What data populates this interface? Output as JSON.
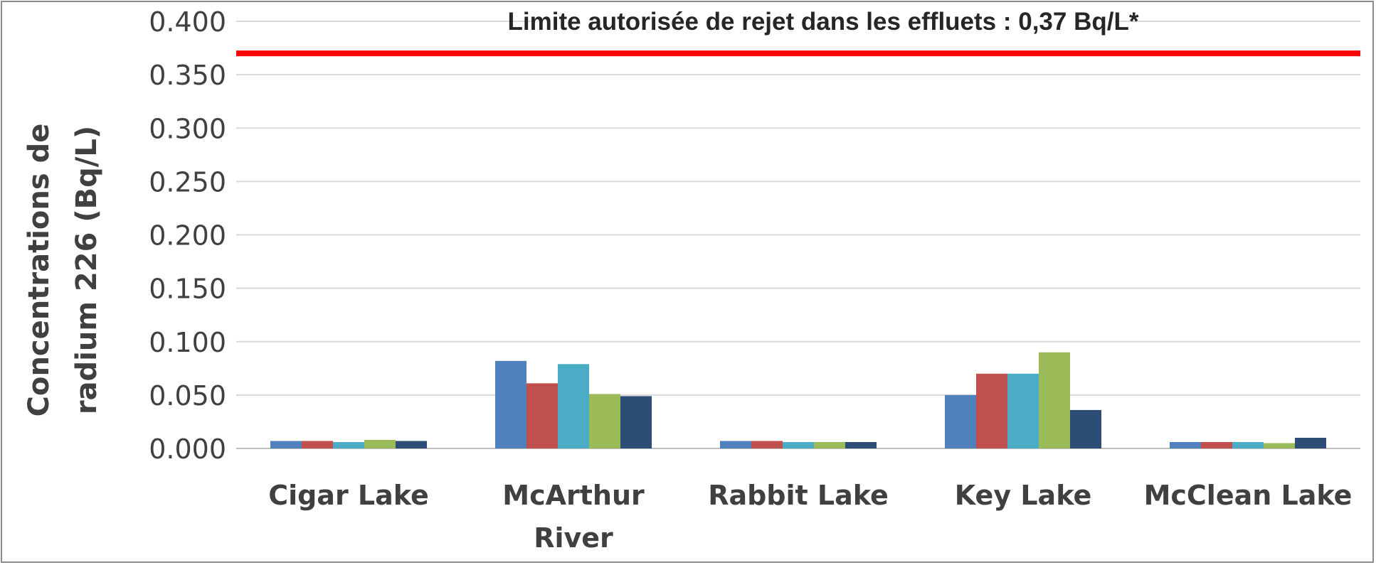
{
  "chart_data": {
    "type": "bar",
    "title": "",
    "ylabel_lines": [
      "Concentrations de",
      "radium 226 (Bq/L)"
    ],
    "xlabel": "",
    "categories": [
      "Cigar Lake",
      "McArthur River",
      "Rabbit Lake",
      "Key Lake",
      "McClean Lake"
    ],
    "series": [
      {
        "values": [
          0.007,
          0.082,
          0.007,
          0.05,
          0.006
        ],
        "color": "#4f81bd"
      },
      {
        "values": [
          0.007,
          0.061,
          0.007,
          0.07,
          0.006
        ],
        "color": "#c0504d"
      },
      {
        "values": [
          0.006,
          0.079,
          0.006,
          0.07,
          0.006
        ],
        "color": "#4bacc6"
      },
      {
        "values": [
          0.008,
          0.051,
          0.006,
          0.09,
          0.005
        ],
        "color": "#9bbb59"
      },
      {
        "values": [
          0.007,
          0.049,
          0.006,
          0.036,
          0.01
        ],
        "color": "#2c4d75"
      }
    ],
    "ylim": [
      0,
      0.4
    ],
    "yticks": [
      "0.000",
      "0.050",
      "0.100",
      "0.150",
      "0.200",
      "0.250",
      "0.300",
      "0.350",
      "0.400"
    ],
    "grid": true,
    "legend": "none",
    "reference_line": {
      "value": 0.37,
      "label": "Limite autorisée de rejet dans les effluets : 0,37 Bq/L*",
      "color": "#ff0000"
    }
  }
}
